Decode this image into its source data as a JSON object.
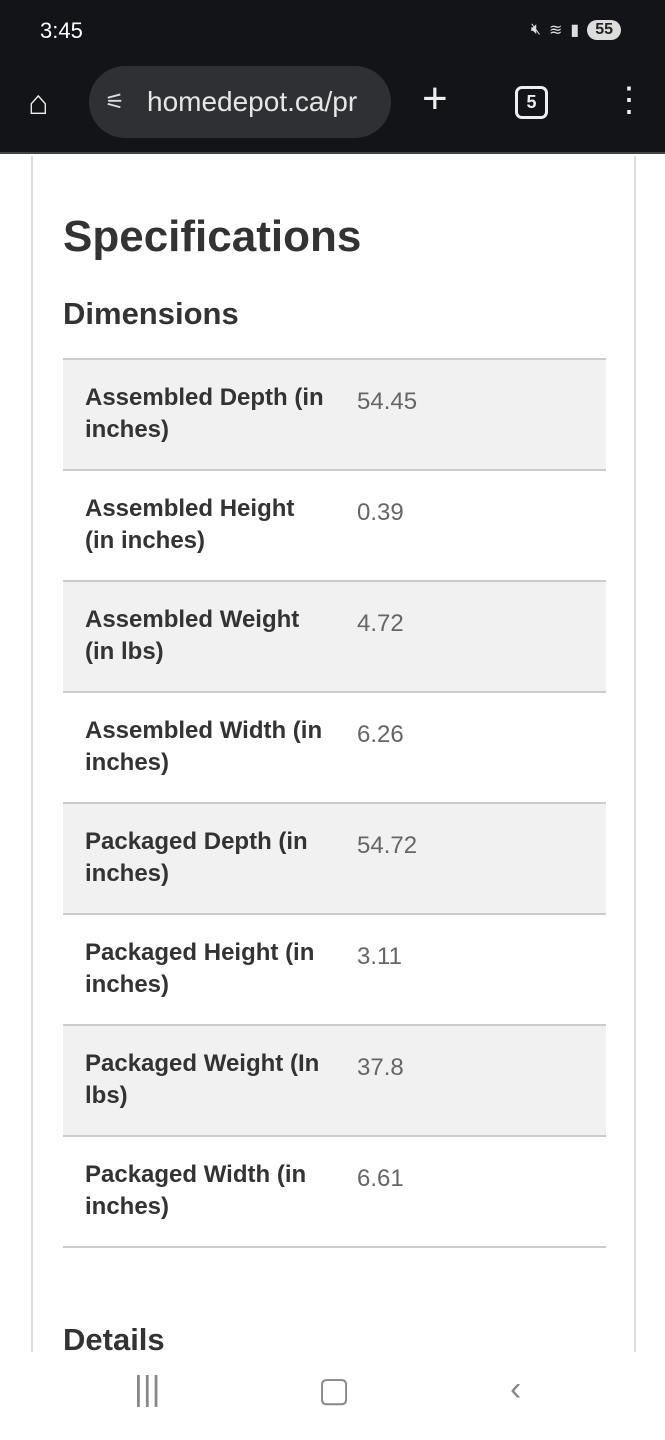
{
  "status": {
    "time": "3:45",
    "battery": "55"
  },
  "browser": {
    "url": "homedepot.ca/pr",
    "tab_count": "5"
  },
  "page": {
    "title": "Specifications",
    "section": "Dimensions",
    "next_section": "Details",
    "rows": [
      {
        "label": "Assembled Depth (in inches)",
        "value": "54.45"
      },
      {
        "label": "Assembled Height (in inches)",
        "value": "0.39"
      },
      {
        "label": "Assembled Weight (in lbs)",
        "value": "4.72"
      },
      {
        "label": "Assembled Width (in inches)",
        "value": "6.26"
      },
      {
        "label": "Packaged Depth (in inches)",
        "value": "54.72"
      },
      {
        "label": "Packaged Height (in inches)",
        "value": "3.11"
      },
      {
        "label": "Packaged Weight (In lbs)",
        "value": "37.8"
      },
      {
        "label": "Packaged Width (in inches)",
        "value": "6.61"
      }
    ]
  }
}
